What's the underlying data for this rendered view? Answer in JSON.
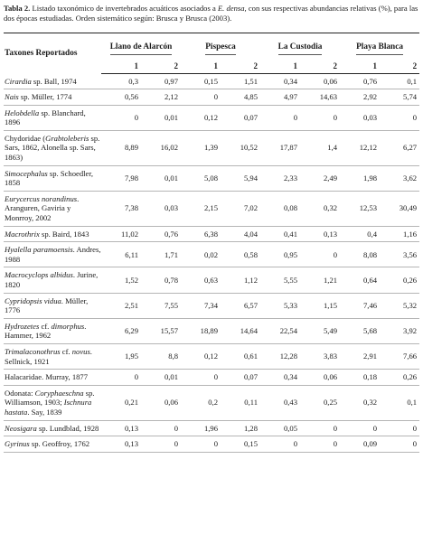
{
  "caption": {
    "label": "Tabla 2.",
    "text_before_italic": " Listado taxonómico de invertebrados acuáticos asociados a ",
    "italic": "E. densa",
    "text_after_italic": ", con sus respectivas abundancias relativas (%), para las dos épocas estudiadas. Orden sistemático según: Brusca y Brusca (2003)."
  },
  "table": {
    "taxa_header": "Taxones Reportados",
    "sites": [
      "Llano de Alarcón",
      "Pispesca",
      "La Custodia",
      "Playa Blanca"
    ],
    "periods": [
      "1",
      "2",
      "1",
      "2",
      "1",
      "2",
      "1",
      "2"
    ],
    "rows": [
      {
        "name_parts": [
          {
            "i": true,
            "t": "Cirardia"
          },
          {
            "i": false,
            "t": " sp. Ball, 1974"
          }
        ],
        "values": [
          "0,3",
          "0,97",
          "0,15",
          "1,51",
          "0,34",
          "0,06",
          "0,76",
          "0,1"
        ]
      },
      {
        "name_parts": [
          {
            "i": true,
            "t": "Nais"
          },
          {
            "i": false,
            "t": " sp. Müller, 1774"
          }
        ],
        "values": [
          "0,56",
          "2,12",
          "0",
          "4,85",
          "4,97",
          "14,63",
          "2,92",
          "5,74"
        ]
      },
      {
        "name_parts": [
          {
            "i": true,
            "t": "Helobdella"
          },
          {
            "i": false,
            "t": " sp. Blanchard, 1896"
          }
        ],
        "values": [
          "0",
          "0,01",
          "0,12",
          "0,07",
          "0",
          "0",
          "0,03",
          "0"
        ]
      },
      {
        "name_parts": [
          {
            "i": false,
            "t": "Chydoridae ("
          },
          {
            "i": true,
            "t": "Grabtoleberis"
          },
          {
            "i": false,
            "t": " sp. Sars, 1862, Alonella sp. Sars, 1863)"
          }
        ],
        "values": [
          "8,89",
          "16,02",
          "1,39",
          "10,52",
          "17,87",
          "1,4",
          "12,12",
          "6,27"
        ]
      },
      {
        "name_parts": [
          {
            "i": true,
            "t": "Simocephalus"
          },
          {
            "i": false,
            "t": " sp. Schoedler, 1858"
          }
        ],
        "values": [
          "7,98",
          "0,01",
          "5,08",
          "5,94",
          "2,33",
          "2,49",
          "1,98",
          "3,62"
        ]
      },
      {
        "name_parts": [
          {
            "i": true,
            "t": "Eurycercus norandinus"
          },
          {
            "i": false,
            "t": ". Aranguren, Gaviria y Monrroy, 2002"
          }
        ],
        "values": [
          "7,38",
          "0,03",
          "2,15",
          "7,02",
          "0,08",
          "0,32",
          "12,53",
          "30,49"
        ]
      },
      {
        "name_parts": [
          {
            "i": true,
            "t": "Macrothrix"
          },
          {
            "i": false,
            "t": " sp. Baird, 1843"
          }
        ],
        "values": [
          "11,02",
          "0,76",
          "6,38",
          "4,04",
          "0,41",
          "0,13",
          "0,4",
          "1,16"
        ]
      },
      {
        "name_parts": [
          {
            "i": true,
            "t": "Hyalella paramoensis"
          },
          {
            "i": false,
            "t": ". Andres, 1988"
          }
        ],
        "values": [
          "6,11",
          "1,71",
          "0,02",
          "0,58",
          "0,95",
          "0",
          "8,08",
          "3,56"
        ]
      },
      {
        "name_parts": [
          {
            "i": true,
            "t": "Macrocyclops albidus"
          },
          {
            "i": false,
            "t": ". Jurine, 1820"
          }
        ],
        "values": [
          "1,52",
          "0,78",
          "0,63",
          "1,12",
          "5,55",
          "1,21",
          "0,64",
          "0,26"
        ]
      },
      {
        "name_parts": [
          {
            "i": true,
            "t": "Cypridopsis vidua"
          },
          {
            "i": false,
            "t": ". Müller, 1776"
          }
        ],
        "values": [
          "2,51",
          "7,55",
          "7,34",
          "6,57",
          "5,33",
          "1,15",
          "7,46",
          "5,32"
        ]
      },
      {
        "name_parts": [
          {
            "i": true,
            "t": "Hydrozetes"
          },
          {
            "i": false,
            "t": " cf. "
          },
          {
            "i": true,
            "t": "dimorphus"
          },
          {
            "i": false,
            "t": ". Hammer, 1962"
          }
        ],
        "values": [
          "6,29",
          "15,57",
          "18,89",
          "14,64",
          "22,54",
          "5,49",
          "5,68",
          "3,92"
        ]
      },
      {
        "name_parts": [
          {
            "i": true,
            "t": "Trimalaconothrus"
          },
          {
            "i": false,
            "t": " cf. "
          },
          {
            "i": true,
            "t": "novus"
          },
          {
            "i": false,
            "t": ". Sellnick, 1921"
          }
        ],
        "values": [
          "1,95",
          "8,8",
          "0,12",
          "0,61",
          "12,28",
          "3,83",
          "2,91",
          "7,66"
        ]
      },
      {
        "name_parts": [
          {
            "i": false,
            "t": "Halacaridae. Murray, 1877"
          }
        ],
        "values": [
          "0",
          "0,01",
          "0",
          "0,07",
          "0,34",
          "0,06",
          "0,18",
          "0,26"
        ]
      },
      {
        "name_parts": [
          {
            "i": false,
            "t": "Odonata: "
          },
          {
            "i": true,
            "t": "Coryphaeschna"
          },
          {
            "i": false,
            "t": " sp. Williamson, 1903; "
          },
          {
            "i": true,
            "t": "Ischnura hastata"
          },
          {
            "i": false,
            "t": ". Say, 1839"
          }
        ],
        "values": [
          "0,21",
          "0,06",
          "0,2",
          "0,11",
          "0,43",
          "0,25",
          "0,32",
          "0,1"
        ]
      },
      {
        "name_parts": [
          {
            "i": true,
            "t": "Neosigara"
          },
          {
            "i": false,
            "t": " sp. Lundblad, 1928"
          }
        ],
        "values": [
          "0,13",
          "0",
          "1,96",
          "1,28",
          "0,05",
          "0",
          "0",
          "0"
        ]
      },
      {
        "name_parts": [
          {
            "i": true,
            "t": "Gyrinus"
          },
          {
            "i": false,
            "t": " sp. Geoffroy, 1762"
          }
        ],
        "values": [
          "0,13",
          "0",
          "0",
          "0,15",
          "0",
          "0",
          "0,09",
          "0"
        ]
      }
    ]
  }
}
